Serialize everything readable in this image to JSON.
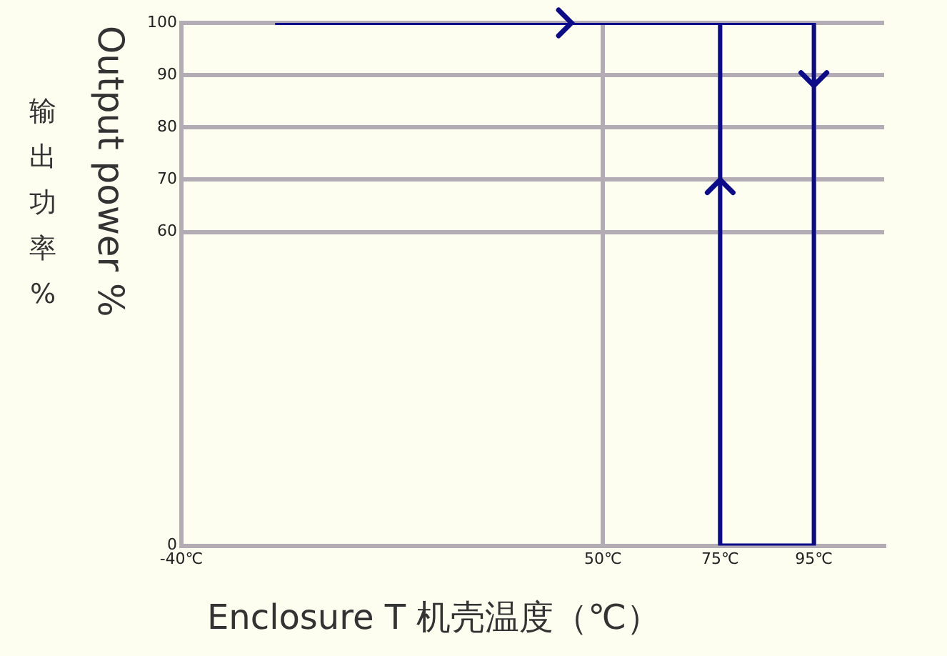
{
  "chart_data": {
    "type": "line",
    "xlabel": "Enclosure T  机壳温度（℃）",
    "ylabel": "Output power %",
    "annotations": [
      "输出功率%"
    ],
    "xlim": [
      -40,
      110
    ],
    "xticks": [
      {
        "value": -40,
        "label": "-40℃"
      },
      {
        "value": 50,
        "label": "50℃"
      },
      {
        "value": 75,
        "label": "75℃"
      },
      {
        "value": 95,
        "label": "95℃"
      }
    ],
    "ylim": [
      0,
      100
    ],
    "yticks": [
      0,
      60,
      70,
      80,
      90,
      100
    ],
    "grid": true,
    "legend": false,
    "marker": "none",
    "line_style": "solid",
    "series": [
      {
        "color": "#0c0c8a",
        "x": [
          -20,
          95,
          95,
          75,
          75
        ],
        "values": [
          100,
          100,
          0,
          0,
          100
        ]
      }
    ]
  }
}
